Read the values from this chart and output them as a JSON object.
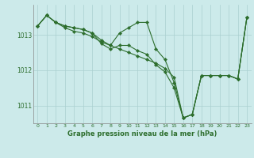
{
  "title": "Graphe pression niveau de la mer (hPa)",
  "background_color": "#cceaea",
  "line_color": "#2d6e2d",
  "grid_color": "#aacfcf",
  "xlim": [
    -0.5,
    23.5
  ],
  "ylim": [
    1010.5,
    1013.85
  ],
  "yticks": [
    1011,
    1012,
    1013
  ],
  "xticks": [
    0,
    1,
    2,
    3,
    4,
    5,
    6,
    7,
    8,
    9,
    10,
    11,
    12,
    13,
    14,
    15,
    16,
    17,
    18,
    19,
    20,
    21,
    22,
    23
  ],
  "series1": {
    "x": [
      0,
      1,
      2,
      3,
      4,
      5,
      6,
      7,
      8,
      9,
      10,
      11,
      12,
      13,
      14,
      15,
      16,
      17,
      18,
      19,
      20,
      21,
      22,
      23
    ],
    "y": [
      1013.25,
      1013.55,
      1013.35,
      1013.25,
      1013.2,
      1013.15,
      1013.05,
      1012.85,
      1012.7,
      1013.05,
      1013.2,
      1013.35,
      1013.35,
      1012.6,
      1012.3,
      1011.65,
      1010.65,
      1010.75,
      1011.85,
      1011.85,
      1011.85,
      1011.85,
      1011.75,
      1013.5
    ]
  },
  "series2": {
    "x": [
      0,
      1,
      2,
      3,
      4,
      5,
      6,
      7,
      8,
      9,
      10,
      11,
      12,
      13,
      14,
      15,
      16,
      17,
      18,
      19,
      20,
      21,
      22,
      23
    ],
    "y": [
      1013.25,
      1013.55,
      1013.35,
      1013.25,
      1013.2,
      1013.15,
      1013.05,
      1012.75,
      1012.6,
      1012.7,
      1012.7,
      1012.55,
      1012.45,
      1012.15,
      1011.95,
      1011.5,
      1010.65,
      1010.75,
      1011.85,
      1011.85,
      1011.85,
      1011.85,
      1011.75,
      1013.5
    ]
  },
  "series3": {
    "x": [
      0,
      1,
      2,
      3,
      4,
      5,
      6,
      7,
      8,
      9,
      10,
      11,
      12,
      13,
      14,
      15,
      16,
      17,
      18,
      19,
      20,
      21,
      22,
      23
    ],
    "y": [
      1013.25,
      1013.55,
      1013.35,
      1013.2,
      1013.1,
      1013.05,
      1012.95,
      1012.8,
      1012.7,
      1012.6,
      1012.5,
      1012.4,
      1012.3,
      1012.2,
      1012.05,
      1011.8,
      1010.65,
      1010.75,
      1011.85,
      1011.85,
      1011.85,
      1011.85,
      1011.75,
      1013.5
    ]
  }
}
